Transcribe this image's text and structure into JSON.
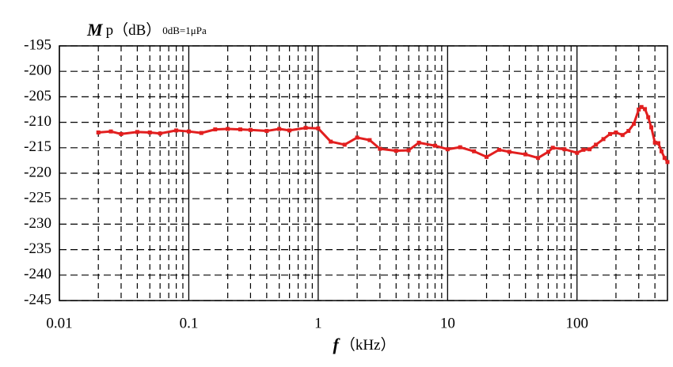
{
  "chart_data": {
    "type": "line",
    "ylabel": {
      "symbol": "M",
      "text": "p（dB）",
      "note": "0dB=1μPa"
    },
    "xlabel": {
      "symbol": "f",
      "text": "（kHz）"
    },
    "x": [
      0.02,
      0.025,
      0.03,
      0.04,
      0.05,
      0.06,
      0.08,
      0.1,
      0.125,
      0.16,
      0.2,
      0.25,
      0.3,
      0.4,
      0.5,
      0.6,
      0.8,
      1,
      1.25,
      1.6,
      2,
      2.5,
      3,
      4,
      5,
      6,
      8,
      10,
      12.5,
      16,
      20,
      25,
      30,
      40,
      50,
      60,
      65,
      80,
      100,
      112,
      125,
      140,
      160,
      180,
      200,
      225,
      250,
      275,
      300,
      315,
      335,
      355,
      375,
      400,
      425,
      450,
      475,
      500
    ],
    "series": [
      {
        "color": "#e21f1f",
        "values": [
          -212,
          -211.8,
          -212.3,
          -211.9,
          -212,
          -212.2,
          -211.6,
          -211.8,
          -212.1,
          -211.4,
          -211.3,
          -211.4,
          -211.5,
          -211.7,
          -211.3,
          -211.6,
          -211.1,
          -211.2,
          -213.8,
          -214.4,
          -213,
          -213.5,
          -215.2,
          -215.6,
          -215.5,
          -214,
          -214.6,
          -215.3,
          -214.9,
          -215.7,
          -216.8,
          -215.4,
          -215.8,
          -216.3,
          -217,
          -215.8,
          -215,
          -215.3,
          -216,
          -215.4,
          -215.3,
          -214.4,
          -213.3,
          -212.3,
          -212,
          -212.5,
          -211.7,
          -210.3,
          -207.5,
          -207,
          -207.4,
          -209,
          -211,
          -214,
          -214.1,
          -215.7,
          -217,
          -217.8
        ]
      }
    ],
    "xlim": [
      0.01,
      500
    ],
    "xticks": [
      0.01,
      0.1,
      1,
      10,
      100
    ],
    "xscale": "log",
    "ylim": [
      -245,
      -195
    ],
    "yticks": [
      -195,
      -200,
      -205,
      -210,
      -215,
      -220,
      -225,
      -230,
      -235,
      -240,
      -245
    ],
    "grid": true,
    "minor_grid": true
  }
}
